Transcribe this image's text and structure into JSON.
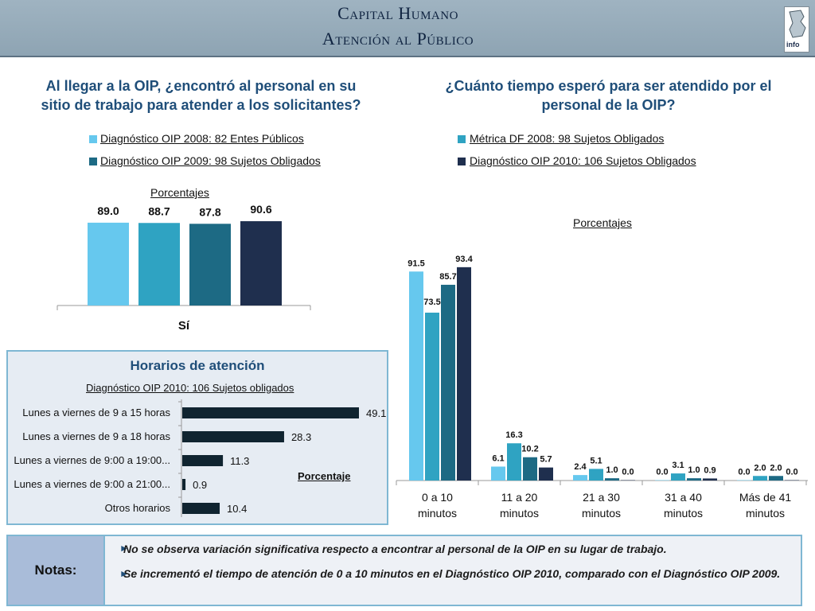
{
  "header": {
    "title_line1": "Capital Humano",
    "title_line2": "Atención al Público"
  },
  "logo": {
    "text": "info"
  },
  "colors": {
    "s2008": "#66c8ee",
    "s2009": "#2fa3c2",
    "metrica2008": "#1d6a84",
    "s2010": "#1f2f4e",
    "hbar": "#102430"
  },
  "chart_data": [
    {
      "type": "bar",
      "title": "Al llegar a la OIP, ¿encontró al personal en su sitio de trabajo para atender a los solicitantes?",
      "subtitle": "Porcentajes",
      "categories": [
        "Sí"
      ],
      "legend": [
        "Diagnóstico OIP 2008: 82 Entes Públicos",
        "Diagnóstico OIP 2009: 98 Sujetos Obligados"
      ],
      "series": [
        {
          "values": [
            89.0
          ]
        },
        {
          "values": [
            88.7
          ]
        },
        {
          "values": [
            87.8
          ]
        },
        {
          "values": [
            90.6
          ]
        }
      ],
      "value_labels": [
        "89.0",
        "88.7",
        "87.8",
        "90.6"
      ],
      "ylim": [
        0,
        100
      ]
    },
    {
      "type": "bar",
      "title": "¿Cuánto tiempo esperó para ser atendido por el personal de la OIP?",
      "subtitle": "Porcentajes",
      "categories": [
        "0 a 10 minutos",
        "11 a 20 minutos",
        "21 a 30 minutos",
        "31 a 40 minutos",
        "Más de 41 minutos"
      ],
      "legend": [
        "Métrica DF 2008: 98 Sujetos Obligados",
        "Diagnóstico OIP 2010: 106 Sujetos Obligados"
      ],
      "series": [
        {
          "values": [
            91.5,
            6.1,
            2.4,
            0.0,
            0.0
          ]
        },
        {
          "values": [
            73.5,
            16.3,
            5.1,
            3.1,
            2.0
          ]
        },
        {
          "values": [
            85.7,
            10.2,
            1.0,
            1.0,
            2.0
          ]
        },
        {
          "values": [
            93.4,
            5.7,
            0.0,
            0.9,
            0.0
          ]
        }
      ],
      "ylim": [
        0,
        100
      ]
    },
    {
      "type": "bar",
      "orientation": "horizontal",
      "title": "Horarios de atención",
      "subtitle": "Diagnóstico OIP 2010: 106 Sujetos obligados",
      "value_axis_label": "Porcentaje",
      "categories": [
        "Lunes a viernes de 9 a 15 horas",
        "Lunes a viernes de 9 a 18 horas",
        "Lunes a viernes de 9:00 a 19:00...",
        "Lunes a viernes de 9:00 a 21:00...",
        "Otros horarios"
      ],
      "values": [
        49.1,
        28.3,
        11.3,
        0.9,
        10.4
      ],
      "xlim": [
        0,
        55
      ]
    }
  ],
  "notes": {
    "label": "Notas:",
    "items": [
      "No se observa variación significativa respecto a encontrar al personal de la OIP en su lugar de trabajo.",
      "Se incrementó el tiempo de atención de 0 a 10 minutos en el Diagnóstico OIP 2010, comparado con el Diagnóstico OIP 2009."
    ]
  }
}
